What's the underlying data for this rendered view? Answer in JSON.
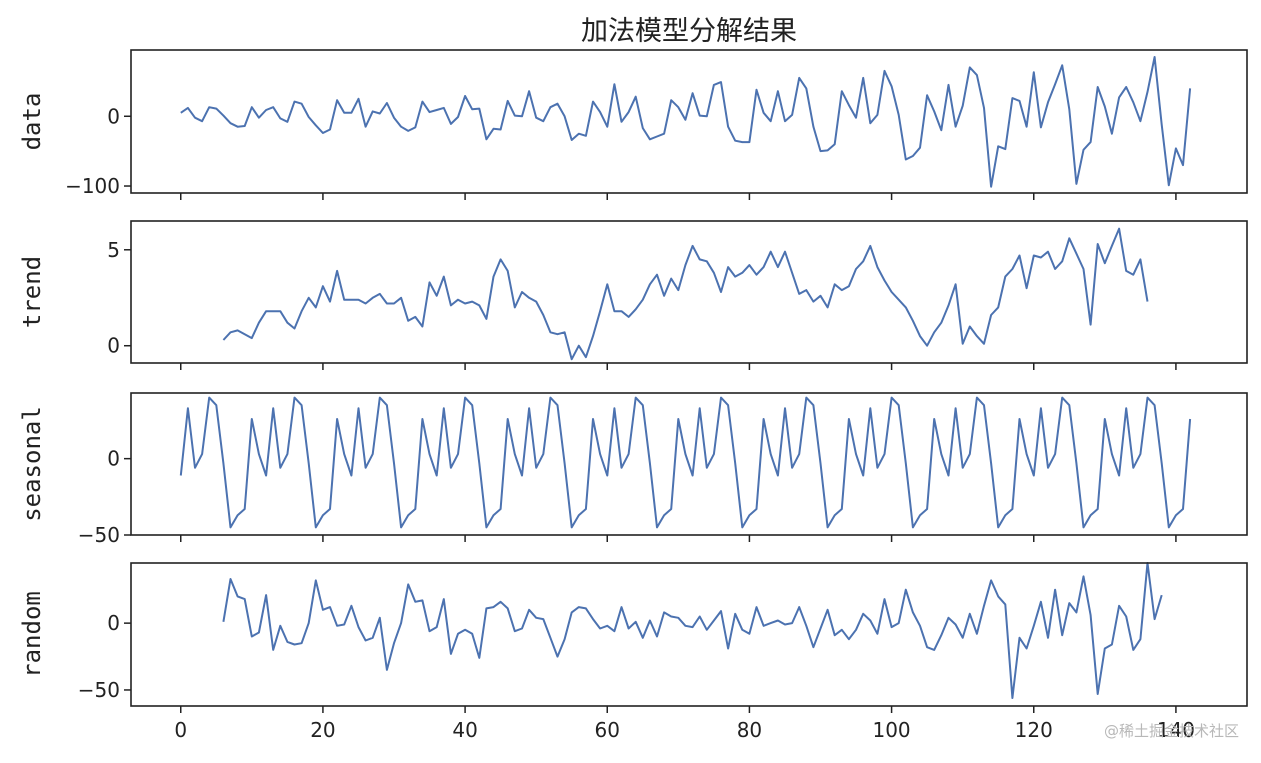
{
  "chart_data": {
    "type": "line",
    "title": "加法模型分解结果",
    "line_color": "#4c72b0",
    "x_ticks": [
      "0",
      "20",
      "40",
      "60",
      "80",
      "100",
      "120",
      "140"
    ],
    "xlim": [
      -7,
      150
    ],
    "subplots": [
      {
        "name": "data",
        "ylabel": "data",
        "ylim": [
          -110,
          95
        ],
        "yticks": [
          0,
          -100
        ],
        "ytick_labels": [
          "0",
          "−100"
        ],
        "x_start": 0,
        "values": [
          5,
          12,
          -2,
          -7,
          13,
          11,
          1,
          -10,
          -15,
          -14,
          13,
          -2,
          9,
          13,
          -3,
          -8,
          21,
          18,
          -1,
          -13,
          -24,
          -19,
          23,
          5,
          5,
          25,
          -15,
          7,
          4,
          19,
          -2,
          -15,
          -21,
          -16,
          21,
          6,
          9,
          12,
          -11,
          -1,
          29,
          10,
          11,
          -33,
          -18,
          -19,
          22,
          1,
          0,
          36,
          -2,
          -7,
          13,
          18,
          0,
          -34,
          -25,
          -28,
          21,
          6,
          -15,
          46,
          -8,
          6,
          28,
          -17,
          -33,
          -29,
          -25,
          23,
          13,
          -5,
          33,
          1,
          0,
          45,
          49,
          -15,
          -35,
          -37,
          -37,
          38,
          5,
          -7,
          36,
          -7,
          2,
          55,
          40,
          -15,
          -50,
          -49,
          -40,
          36,
          16,
          -2,
          55,
          -10,
          2,
          65,
          43,
          2,
          -62,
          -57,
          -45,
          30,
          7,
          -20,
          45,
          -15,
          15,
          70,
          59,
          12,
          -101,
          -43,
          -47,
          26,
          22,
          -15,
          63,
          -16,
          20,
          46,
          73,
          10,
          -97,
          -48,
          -37,
          42,
          14,
          -25,
          27,
          42,
          20,
          -7,
          35,
          85,
          -12,
          -99,
          -46,
          -70,
          40
        ]
      },
      {
        "name": "trend",
        "ylabel": "trend",
        "ylim": [
          -0.9,
          6.5
        ],
        "yticks": [
          5,
          0
        ],
        "ytick_labels": [
          "5",
          "0"
        ],
        "x_start": 6,
        "values": [
          0.3,
          0.7,
          0.8,
          0.6,
          0.4,
          1.2,
          1.8,
          1.8,
          1.8,
          1.2,
          0.9,
          1.8,
          2.5,
          2.0,
          3.1,
          2.3,
          3.9,
          2.4,
          2.4,
          2.4,
          2.2,
          2.5,
          2.7,
          2.2,
          2.2,
          2.5,
          1.3,
          1.5,
          1.0,
          3.3,
          2.6,
          3.6,
          2.1,
          2.4,
          2.2,
          2.3,
          2.1,
          1.4,
          3.6,
          4.5,
          3.9,
          2.0,
          2.8,
          2.5,
          2.3,
          1.6,
          0.7,
          0.6,
          0.7,
          -0.7,
          0.0,
          -0.6,
          0.5,
          1.8,
          3.2,
          1.8,
          1.8,
          1.5,
          1.9,
          2.4,
          3.2,
          3.7,
          2.6,
          3.5,
          2.9,
          4.2,
          5.2,
          4.5,
          4.4,
          3.8,
          2.8,
          4.1,
          3.6,
          3.8,
          4.2,
          3.7,
          4.1,
          4.9,
          4.1,
          4.9,
          3.8,
          2.7,
          2.9,
          2.3,
          2.6,
          2.0,
          3.2,
          2.9,
          3.1,
          4.0,
          4.4,
          5.2,
          4.1,
          3.4,
          2.8,
          2.4,
          2.0,
          1.3,
          0.5,
          0.0,
          0.7,
          1.2,
          2.1,
          3.2,
          0.1,
          1.0,
          0.5,
          0.1,
          1.6,
          2.0,
          3.6,
          4.0,
          4.7,
          3.0,
          4.7,
          4.6,
          4.9,
          4.0,
          4.4,
          5.6,
          4.8,
          4.0,
          1.1,
          5.3,
          4.3,
          5.2,
          6.1,
          3.9,
          3.7,
          4.5,
          2.3
        ]
      },
      {
        "name": "seasonal",
        "ylabel": "seasonal",
        "ylim": [
          -50,
          43
        ],
        "yticks": [
          0,
          -50
        ],
        "ytick_labels": [
          "0",
          "−50"
        ],
        "x_start": 0,
        "values": [
          -11,
          33,
          -6,
          3,
          40,
          35,
          -3,
          -45,
          -37,
          -33,
          26,
          3,
          -11,
          33,
          -6,
          3,
          40,
          35,
          -3,
          -45,
          -37,
          -33,
          26,
          3,
          -11,
          33,
          -6,
          3,
          40,
          35,
          -3,
          -45,
          -37,
          -33,
          26,
          3,
          -11,
          33,
          -6,
          3,
          40,
          35,
          -3,
          -45,
          -37,
          -33,
          26,
          3,
          -11,
          33,
          -6,
          3,
          40,
          35,
          -3,
          -45,
          -37,
          -33,
          26,
          3,
          -11,
          33,
          -6,
          3,
          40,
          35,
          -3,
          -45,
          -37,
          -33,
          26,
          3,
          -11,
          33,
          -6,
          3,
          40,
          35,
          -3,
          -45,
          -37,
          -33,
          26,
          3,
          -11,
          33,
          -6,
          3,
          40,
          35,
          -3,
          -45,
          -37,
          -33,
          26,
          3,
          -11,
          33,
          -6,
          3,
          40,
          35,
          -3,
          -45,
          -37,
          -33,
          26,
          3,
          -11,
          33,
          -6,
          3,
          40,
          35,
          -3,
          -45,
          -37,
          -33,
          26,
          3,
          -11,
          33,
          -6,
          3,
          40,
          35,
          -3,
          -45,
          -37,
          -33,
          26,
          3,
          -11,
          33,
          -6,
          3,
          40,
          35,
          -3,
          -45,
          -37,
          -33,
          26
        ]
      },
      {
        "name": "random",
        "ylabel": "random",
        "ylim": [
          -62,
          45
        ],
        "yticks": [
          0,
          -50
        ],
        "ytick_labels": [
          "0",
          "−50"
        ],
        "x_start": 6,
        "values": [
          1,
          33,
          20,
          18,
          -10,
          -7,
          21,
          -20,
          -2,
          -14,
          -16,
          -15,
          0,
          32,
          10,
          12,
          -2,
          -1,
          13,
          -3,
          -13,
          -11,
          4,
          -35,
          -15,
          0,
          29,
          16,
          17,
          -6,
          -3,
          18,
          -23,
          -8,
          -5,
          -8,
          -26,
          11,
          12,
          16,
          11,
          -6,
          -4,
          10,
          4,
          3,
          -11,
          -25,
          -12,
          8,
          12,
          11,
          3,
          -4,
          -2,
          -6,
          12,
          -4,
          1,
          -11,
          2,
          -10,
          8,
          5,
          4,
          -2,
          -3,
          5,
          -5,
          2,
          9,
          -19,
          7,
          -5,
          -8,
          12,
          -2,
          0,
          2,
          -1,
          0,
          12,
          -2,
          -18,
          -4,
          10,
          -9,
          -5,
          -12,
          -5,
          7,
          2,
          -8,
          18,
          -3,
          0,
          25,
          8,
          -2,
          -18,
          -20,
          -9,
          4,
          -1,
          -11,
          7,
          -8,
          13,
          32,
          20,
          14,
          -56,
          -11,
          -19,
          -2,
          16,
          -11,
          25,
          -9,
          15,
          8,
          35,
          6,
          -53,
          -19,
          -16,
          13,
          5,
          -20,
          -12,
          45,
          3,
          21
        ]
      }
    ]
  },
  "watermark": "@稀土掘金技术社区"
}
